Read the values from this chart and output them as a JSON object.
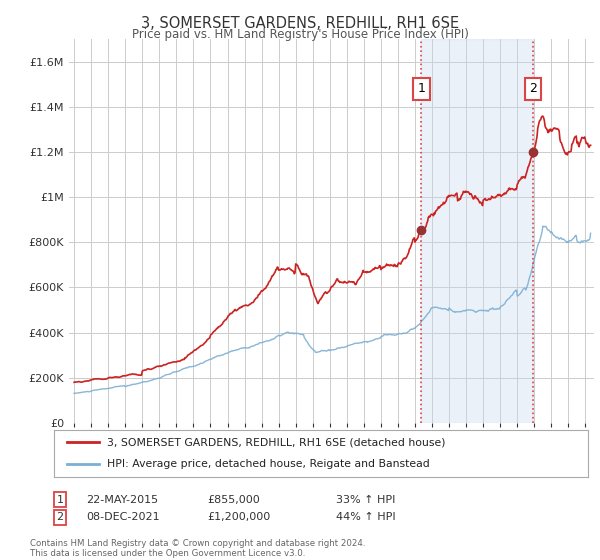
{
  "title": "3, SOMERSET GARDENS, REDHILL, RH1 6SE",
  "subtitle": "Price paid vs. HM Land Registry's House Price Index (HPI)",
  "ytick_values": [
    0,
    200000,
    400000,
    600000,
    800000,
    1000000,
    1200000,
    1400000,
    1600000
  ],
  "ylim": [
    0,
    1700000
  ],
  "xlim_start": 1994.7,
  "xlim_end": 2025.5,
  "hpi_color": "#7bafd4",
  "price_color": "#cc2222",
  "dashed_color": "#dd4444",
  "point1_x": 2015.38,
  "point1_y": 855000,
  "point2_x": 2021.93,
  "point2_y": 1200000,
  "label1": "3, SOMERSET GARDENS, REDHILL, RH1 6SE (detached house)",
  "label2": "HPI: Average price, detached house, Reigate and Banstead",
  "annotation1_date": "22-MAY-2015",
  "annotation1_price": "£855,000",
  "annotation1_hpi": "33% ↑ HPI",
  "annotation2_date": "08-DEC-2021",
  "annotation2_price": "£1,200,000",
  "annotation2_hpi": "44% ↑ HPI",
  "footer": "Contains HM Land Registry data © Crown copyright and database right 2024.\nThis data is licensed under the Open Government Licence v3.0.",
  "background_color": "#ffffff",
  "plot_bg_color": "#ffffff",
  "grid_color": "#cccccc"
}
